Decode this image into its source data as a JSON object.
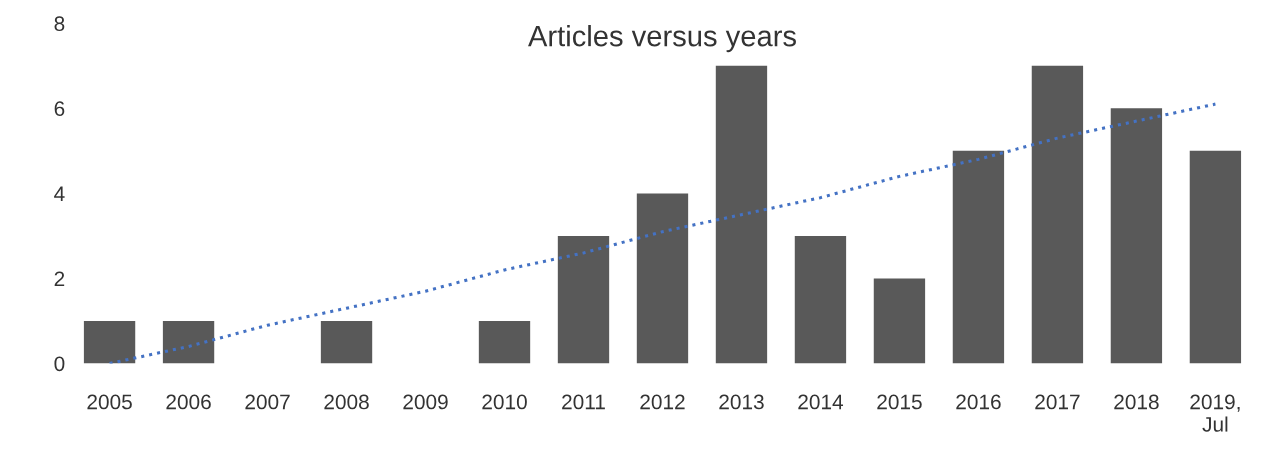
{
  "chart_data": {
    "type": "bar",
    "title": "Articles versus years",
    "categories": [
      "2005",
      "2006",
      "2007",
      "2008",
      "2009",
      "2010",
      "2011",
      "2012",
      "2013",
      "2014",
      "2015",
      "2016",
      "2017",
      "2018",
      "2019,\nJul"
    ],
    "series": [
      {
        "color": "#595959",
        "values": [
          1,
          1,
          0,
          1,
          0,
          1,
          3,
          4,
          7,
          3,
          2,
          5,
          7,
          6,
          5
        ]
      },
      {
        "type": "line",
        "color": "#4472c4",
        "line_style": "dotted",
        "values": [
          0.0,
          0.4,
          0.9,
          1.3,
          1.7,
          2.2,
          2.6,
          3.1,
          3.5,
          3.9,
          4.4,
          4.8,
          5.3,
          5.7,
          6.1
        ]
      }
    ],
    "ylim": [
      0,
      8
    ],
    "yticks": [
      0,
      2,
      4,
      6,
      8
    ],
    "grid": false,
    "legend": false
  }
}
